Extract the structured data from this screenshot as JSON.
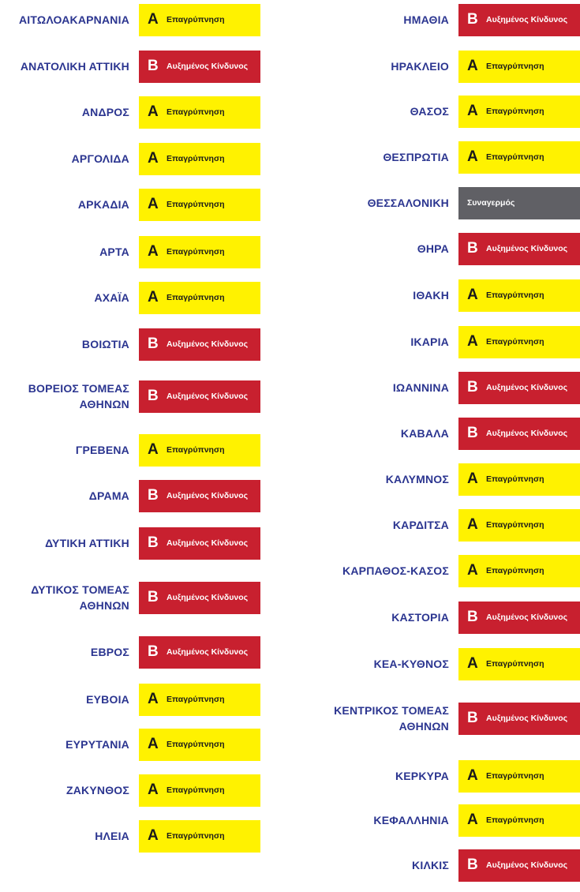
{
  "colors": {
    "name_text": "#2b3590",
    "level_A": "#fff200",
    "level_B": "#c8202f",
    "level_C": "#606065"
  },
  "left": [
    {
      "name": "ΑΙΤΩΛΟΑΚΑΡΝΑΝΙΑ",
      "level": "A",
      "letter": "Α",
      "status": "Επαγρύπνηση"
    },
    {
      "name": "ΑΝΑΤΟΛΙΚΗ ΑΤΤΙΚΗ",
      "level": "B",
      "letter": "Β",
      "status": "Αυξημένος Κίνδυνος"
    },
    {
      "name": "ΑΝΔΡΟΣ",
      "level": "A",
      "letter": "Α",
      "status": "Επαγρύπνηση"
    },
    {
      "name": "ΑΡΓΟΛΙΔΑ",
      "level": "A",
      "letter": "Α",
      "status": "Επαγρύπνηση"
    },
    {
      "name": "ΑΡΚΑΔΙΑ",
      "level": "A",
      "letter": "Α",
      "status": "Επαγρύπνηση"
    },
    {
      "name": "ΑΡΤΑ",
      "level": "A",
      "letter": "Α",
      "status": "Επαγρύπνηση"
    },
    {
      "name": "ΑΧΑΪΑ",
      "level": "A",
      "letter": "Α",
      "status": "Επαγρύπνηση"
    },
    {
      "name": "ΒΟΙΩΤΙΑ",
      "level": "B",
      "letter": "Β",
      "status": "Αυξημένος Κίνδυνος"
    },
    {
      "name": "ΒΟΡΕΙΟΣ ΤΟΜΕΑΣ ΑΘΗΝΩΝ",
      "level": "B",
      "letter": "Β",
      "status": "Αυξημένος Κίνδυνος"
    },
    {
      "name": "ΓΡΕΒΕΝΑ",
      "level": "A",
      "letter": "Α",
      "status": "Επαγρύπνηση"
    },
    {
      "name": "ΔΡΑΜΑ",
      "level": "B",
      "letter": "Β",
      "status": "Αυξημένος Κίνδυνος"
    },
    {
      "name": "ΔΥΤΙΚΗ ΑΤΤΙΚΗ",
      "level": "B",
      "letter": "Β",
      "status": "Αυξημένος Κίνδυνος"
    },
    {
      "name": "ΔΥΤΙΚΟΣ ΤΟΜΕΑΣ ΑΘΗΝΩΝ",
      "level": "B",
      "letter": "Β",
      "status": "Αυξημένος Κίνδυνος"
    },
    {
      "name": "ΕΒΡΟΣ",
      "level": "B",
      "letter": "Β",
      "status": "Αυξημένος Κίνδυνος"
    },
    {
      "name": "ΕΥΒΟΙΑ",
      "level": "A",
      "letter": "Α",
      "status": "Επαγρύπνηση"
    },
    {
      "name": "ΕΥΡΥΤΑΝΙΑ",
      "level": "A",
      "letter": "Α",
      "status": "Επαγρύπνηση"
    },
    {
      "name": "ΖΑΚΥΝΘΟΣ",
      "level": "A",
      "letter": "Α",
      "status": "Επαγρύπνηση"
    },
    {
      "name": "ΗΛΕΙΑ",
      "level": "A",
      "letter": "Α",
      "status": "Επαγρύπνηση"
    }
  ],
  "right": [
    {
      "name": "ΗΜΑΘΙΑ",
      "level": "B",
      "letter": "Β",
      "status": "Αυξημένος Κίνδυνος"
    },
    {
      "name": "ΗΡΑΚΛΕΙΟ",
      "level": "A",
      "letter": "Α",
      "status": "Επαγρύπνηση"
    },
    {
      "name": "ΘΑΣΟΣ",
      "level": "A",
      "letter": "Α",
      "status": "Επαγρύπνηση"
    },
    {
      "name": "ΘΕΣΠΡΩΤΙΑ",
      "level": "A",
      "letter": "Α",
      "status": "Επαγρύπνηση"
    },
    {
      "name": "ΘΕΣΣΑΛΟΝΙΚΗ",
      "level": "C",
      "letter": "",
      "status": "Συναγερμός"
    },
    {
      "name": "ΘΗΡΑ",
      "level": "B",
      "letter": "Β",
      "status": "Αυξημένος Κίνδυνος"
    },
    {
      "name": "ΙΘΑΚΗ",
      "level": "A",
      "letter": "Α",
      "status": "Επαγρύπνηση"
    },
    {
      "name": "ΙΚΑΡΙΑ",
      "level": "A",
      "letter": "Α",
      "status": "Επαγρύπνηση"
    },
    {
      "name": "ΙΩΑΝΝΙΝΑ",
      "level": "B",
      "letter": "Β",
      "status": "Αυξημένος Κίνδυνος"
    },
    {
      "name": "ΚΑΒΑΛΑ",
      "level": "B",
      "letter": "Β",
      "status": "Αυξημένος Κίνδυνος"
    },
    {
      "name": "ΚΑΛΥΜΝΟΣ",
      "level": "A",
      "letter": "Α",
      "status": "Επαγρύπνηση"
    },
    {
      "name": "ΚΑΡΔΙΤΣΑ",
      "level": "A",
      "letter": "Α",
      "status": "Επαγρύπνηση"
    },
    {
      "name": "ΚΑΡΠΑΘΟΣ-ΚΑΣΟΣ",
      "level": "A",
      "letter": "Α",
      "status": "Επαγρύπνηση"
    },
    {
      "name": "ΚΑΣΤΟΡΙΑ",
      "level": "B",
      "letter": "Β",
      "status": "Αυξημένος Κίνδυνος"
    },
    {
      "name": "ΚΕΑ-ΚΥΘΝΟΣ",
      "level": "A",
      "letter": "Α",
      "status": "Επαγρύπνηση"
    },
    {
      "name": "ΚΕΝΤΡΙΚΟΣ ΤΟΜΕΑΣ ΑΘΗΝΩΝ",
      "level": "B",
      "letter": "Β",
      "status": "Αυξημένος Κίνδυνος"
    },
    {
      "name": "ΚΕΡΚΥΡΑ",
      "level": "A",
      "letter": "Α",
      "status": "Επαγρύπνηση"
    },
    {
      "name": "ΚΕΦΑΛΛΗΝΙΑ",
      "level": "A",
      "letter": "Α",
      "status": "Επαγρύπνηση"
    },
    {
      "name": "ΚΙΛΚΙΣ",
      "level": "B",
      "letter": "Β",
      "status": "Αυξημένος Κίνδυνος"
    }
  ]
}
